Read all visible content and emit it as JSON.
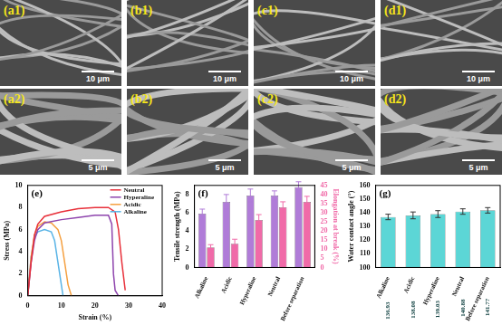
{
  "sem_panels": [
    {
      "label": "(a1)",
      "scale_bar": "10 μm"
    },
    {
      "label": "(b1)",
      "scale_bar": "10 μm"
    },
    {
      "label": "(c1)",
      "scale_bar": "10 μm"
    },
    {
      "label": "(d1)",
      "scale_bar": "10 μm"
    },
    {
      "label": "(a2)",
      "scale_bar": "5 μm"
    },
    {
      "label": "(b2)",
      "scale_bar": "5 μm"
    },
    {
      "label": "(c2)",
      "scale_bar": "5 μm"
    },
    {
      "label": "(d2)",
      "scale_bar": "5 μm"
    }
  ],
  "chart_data": [
    {
      "type": "line",
      "title": "(e)",
      "x_label": "Strain (%)",
      "y_label": "Stress (MPa)",
      "xlim": [
        0,
        40
      ],
      "xticks": [
        0,
        10,
        20,
        30,
        40
      ],
      "ylim": [
        0,
        10
      ],
      "yticks": [
        0,
        2,
        4,
        6,
        8,
        10
      ],
      "legend": "upper right",
      "series": [
        {
          "name": "Neutral",
          "color": "#e8303a",
          "x": [
            0,
            1,
            2,
            3,
            5,
            10,
            15,
            20,
            24,
            26,
            27,
            28,
            29
          ],
          "values": [
            0,
            3,
            5.5,
            6.5,
            7.2,
            7.6,
            7.9,
            8.0,
            8.0,
            7.6,
            6,
            3,
            0.5
          ]
        },
        {
          "name": "Hyperaline",
          "color": "#8e44ad",
          "x": [
            0,
            1,
            2,
            3,
            5,
            10,
            15,
            20,
            24,
            25,
            25.5,
            26,
            27
          ],
          "values": [
            0,
            3,
            5,
            6,
            6.6,
            6.9,
            7.1,
            7.3,
            7.3,
            6.5,
            2,
            0.5,
            0
          ]
        },
        {
          "name": "Acidic",
          "color": "#f5a040",
          "x": [
            0,
            1,
            2,
            3,
            5,
            7,
            9,
            10,
            11,
            12,
            13
          ],
          "values": [
            0,
            3.5,
            5.5,
            6.3,
            6.7,
            6.6,
            6,
            5,
            3,
            1,
            0
          ]
        },
        {
          "name": "Alkaline",
          "color": "#5ab4e6",
          "x": [
            0,
            1,
            2,
            3,
            5,
            7,
            8,
            9,
            10,
            10.5
          ],
          "values": [
            0,
            3.5,
            5.3,
            5.8,
            6,
            5.8,
            5,
            3,
            1,
            0
          ]
        }
      ]
    },
    {
      "type": "bar",
      "title": "(f)",
      "categories": [
        "Alkaline",
        "Acidic",
        "Hyperaline",
        "Neutral",
        "Before separation"
      ],
      "y_label": "Tensile strength (MPa)",
      "y2_label": "Elongation at break (%)",
      "ylim": [
        0,
        9
      ],
      "yticks": [
        0,
        2,
        4,
        6,
        8
      ],
      "y2lim": [
        0,
        45
      ],
      "y2ticks": [
        0,
        5,
        10,
        15,
        20,
        25,
        30,
        35,
        40,
        45
      ],
      "series": [
        {
          "color": "#b07cd8",
          "values": [
            5.9,
            7.2,
            7.9,
            7.9,
            8.8
          ],
          "errors": [
            0.5,
            0.8,
            0.7,
            0.5,
            0.6
          ]
        },
        {
          "color": "#f06aa8",
          "axis": "y2",
          "values": [
            11,
            13,
            26,
            33,
            36
          ],
          "errors": [
            1.5,
            2.5,
            3,
            3,
            3
          ]
        }
      ]
    },
    {
      "type": "bar",
      "title": "(g)",
      "categories": [
        "Alkaline",
        "Acidic",
        "Hyperaline",
        "Neutral",
        "Before separation"
      ],
      "values": [
        136.93,
        138.08,
        139.03,
        140.88,
        141.77
      ],
      "errors": [
        2,
        2.5,
        2.5,
        2,
        2
      ],
      "color": "#5cd6d6",
      "y_label": "Water contact angle (°)",
      "ylim": [
        100,
        160
      ],
      "yticks": [
        100,
        110,
        120,
        130,
        140,
        150,
        160
      ],
      "data_labels": true
    }
  ]
}
